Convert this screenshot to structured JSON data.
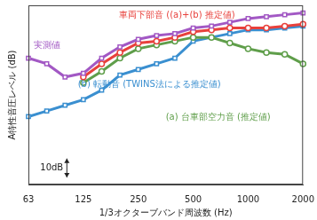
{
  "chart_data": {
    "type": "line",
    "categories": [
      "63",
      null,
      null,
      "125",
      null,
      null,
      "250",
      null,
      null,
      "500",
      null,
      null,
      "1000",
      null,
      null,
      "2000"
    ],
    "x_label": "1/3オクターブバンド周波数 (Hz)",
    "y_label": "A特性音圧レベル (dB)",
    "ylim": [
      0,
      95
    ],
    "yticks": [],
    "grid": false,
    "tick_labels": "x",
    "scale_bar": {
      "value": 10,
      "label": "10dB"
    },
    "series": [
      {
        "name": "実測値",
        "color": "#a258c4",
        "marker": "square",
        "line_style": "solid",
        "values": [
          67,
          64,
          57,
          59,
          67,
          73,
          77,
          79,
          80,
          83,
          84,
          86,
          88,
          89,
          90,
          91
        ]
      },
      {
        "name": "車両下部音 ((a)+(b) 推定値)",
        "color": "#e8413c",
        "marker": "circle",
        "line_style": "solid",
        "values": [
          null,
          null,
          null,
          57,
          64,
          70,
          75,
          76,
          78,
          81,
          82,
          83,
          83,
          83,
          84,
          85
        ]
      },
      {
        "name": "(a) 台車部空力音 (推定値)",
        "color": "#5f9e4a",
        "marker": "circle",
        "line_style": "solid",
        "values": [
          null,
          null,
          null,
          54,
          60,
          67,
          72,
          74,
          76,
          78,
          78,
          75,
          72,
          70,
          69,
          64
        ]
      },
      {
        "name": "(b) 転動音 (TWINS法による推定値)",
        "color": "#3a8fd0",
        "marker": "square",
        "line_style": "solid",
        "values": [
          36,
          39,
          42,
          45,
          50,
          58,
          61,
          64,
          67,
          76,
          78,
          80,
          82,
          82,
          83,
          84
        ]
      }
    ]
  }
}
